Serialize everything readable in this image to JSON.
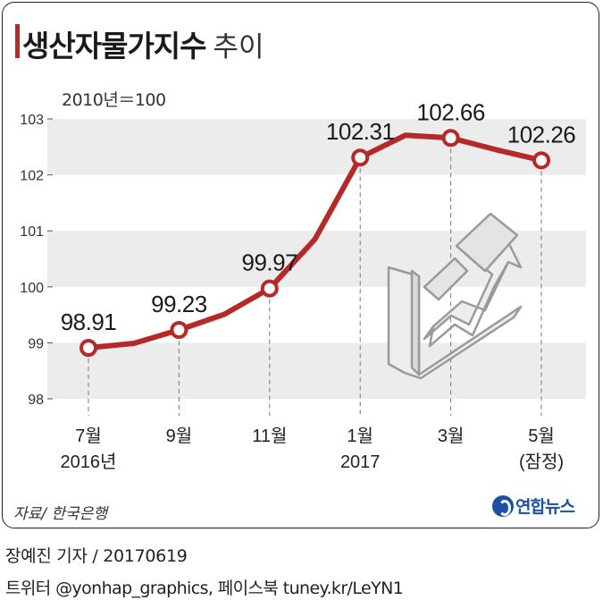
{
  "header": {
    "title": "생산자물가지수",
    "subtitle": "추이",
    "unit_note": "2010년＝100"
  },
  "footer": {
    "source": "자료/ 한국은행",
    "logo_text": "연합뉴스",
    "credit": "장예진 기자 / 20170619",
    "social": "트위터 @yonhap_graphics, 페이스북 tuney.kr/LeYN1"
  },
  "colors": {
    "line": "#b52a28",
    "band": "#ececec",
    "text": "#222222",
    "logo": "#1d4fa3"
  },
  "chart_data": {
    "type": "line",
    "title": "생산자물가지수 추이",
    "ylabel": "2010년＝100",
    "ylim": [
      98,
      103
    ],
    "yticks": [
      98,
      99,
      100,
      101,
      102,
      103
    ],
    "x": [
      0,
      1,
      2,
      3,
      4,
      5,
      6,
      7,
      8,
      9,
      10
    ],
    "series": [
      {
        "values": [
          98.91,
          98.99,
          99.23,
          99.51,
          99.97,
          100.85,
          102.31,
          102.71,
          102.66,
          102.45,
          102.26
        ]
      }
    ],
    "data_labels": [
      {
        "index": 0,
        "text": "98.91"
      },
      {
        "index": 2,
        "text": "99.23"
      },
      {
        "index": 4,
        "text": "99.97"
      },
      {
        "index": 6,
        "text": "102.31"
      },
      {
        "index": 8,
        "text": "102.66"
      },
      {
        "index": 10,
        "text": "102.26"
      }
    ],
    "x_labels": [
      {
        "index": 0,
        "lines": [
          "7월",
          "2016년"
        ]
      },
      {
        "index": 2,
        "lines": [
          "9월"
        ]
      },
      {
        "index": 4,
        "lines": [
          "11월"
        ]
      },
      {
        "index": 6,
        "lines": [
          "1월",
          "2017"
        ]
      },
      {
        "index": 8,
        "lines": [
          "3월"
        ]
      },
      {
        "index": 10,
        "lines": [
          "5월",
          "(잠정)"
        ]
      }
    ],
    "grid": "alternating horizontal bands"
  }
}
